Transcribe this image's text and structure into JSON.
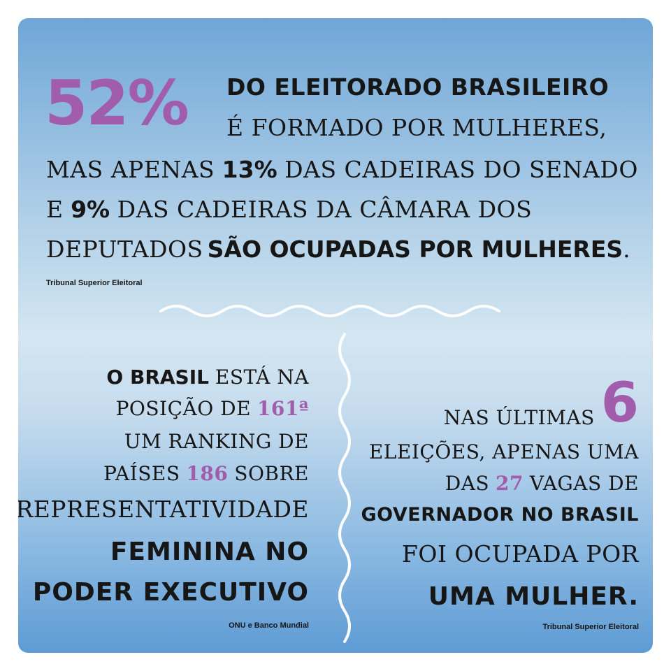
{
  "top": {
    "big_number": "52%",
    "line1": "DO ELEITORADO BRASILEIRO",
    "line2": "É FORMADO POR MULHERES,",
    "line3_pre": "MAS APENAS",
    "line3_pct": "13%",
    "line3_post": "DAS CADEIRAS DO SENADO",
    "line4_pre": "E",
    "line4_pct": "9%",
    "line4_post": "DAS CADEIRAS DA CÂMARA DOS",
    "line5_pre": "DEPUTADOS",
    "line5_bold": "SÃO OCUPADAS POR MULHERES",
    "line5_end": ".",
    "source": "Tribunal Superior Eleitoral"
  },
  "left": {
    "l1_bold": "O BRASIL",
    "l1_rest": "ESTÁ NA",
    "l2_pre": "POSIÇÃO DE",
    "l2_num": "161ª",
    "l3": "UM RANKING DE",
    "l4_pre": "PAÍSES",
    "l4_num": "186",
    "l4_post": "SOBRE",
    "l5": "REPRESENTATIVIDADE",
    "l6": "FEMININA NO",
    "l7": "PODER EXECUTIVO",
    "source": "ONU e Banco Mundial"
  },
  "right": {
    "r1": "NAS ÚLTIMAS",
    "r1_num": "6",
    "r2": "ELEIÇÕES, APENAS UMA",
    "r3_pre": "DAS",
    "r3_num": "27",
    "r3_post": "VAGAS DE",
    "r4": "GOVERNADOR NO BRASIL",
    "r5": "FOI OCUPADA POR",
    "r6": "UMA MULHER.",
    "source": "Tribunal Superior Eleitoral"
  },
  "colors": {
    "accent": "#a15cab",
    "text": "#161616",
    "wave": "#ffffff",
    "background_top": "#6fa6d7",
    "background_bottom": "#5e9bd4"
  }
}
